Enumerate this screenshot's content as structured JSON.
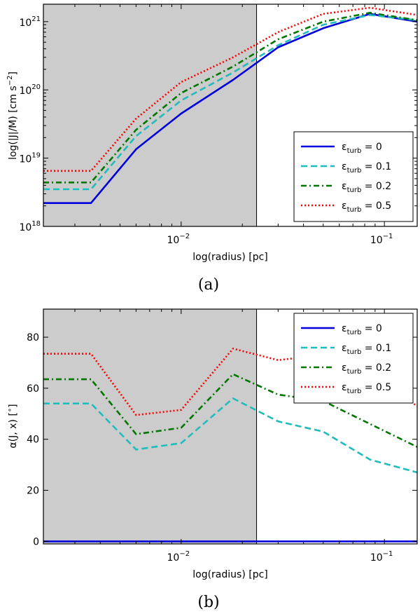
{
  "chart_data": [
    {
      "type": "line",
      "caption": "(a)",
      "xlabel": "log(radius) [pc]",
      "ylabel": "log(|J|/M) [cm s",
      "ylabel_sup": "−2",
      "ylabel_end": "]",
      "xscale": "log",
      "yscale": "log",
      "xlim": [
        0.0021,
        0.145
      ],
      "ylim": [
        1e+18,
        1.8e+21
      ],
      "shaded_xmax": 0.0235,
      "x_ticks": [
        {
          "value": 0.01,
          "base": "10",
          "exp": "−2"
        },
        {
          "value": 0.1,
          "base": "10",
          "exp": "−1"
        }
      ],
      "y_ticks": [
        {
          "value": 1e+18,
          "base": "10",
          "exp": "18"
        },
        {
          "value": 1e+19,
          "base": "10",
          "exp": "19"
        },
        {
          "value": 1e+20,
          "base": "10",
          "exp": "20"
        },
        {
          "value": 1e+21,
          "base": "10",
          "exp": "21"
        }
      ],
      "legend_position": "bottom-right",
      "series": [
        {
          "name": "= 0",
          "color": "#0000dd",
          "dash": "solid",
          "x": [
            0.0021,
            0.0036,
            0.006,
            0.01,
            0.018,
            0.03,
            0.05,
            0.085,
            0.145
          ],
          "y": [
            2.2e+18,
            2.2e+18,
            1.35e+19,
            4.5e+19,
            1.4e+20,
            4.2e+20,
            8e+20,
            1.3e+21,
            1e+21
          ]
        },
        {
          "name": "= 0.1",
          "color": "#22bbbb",
          "dash": "dashed",
          "x": [
            0.0021,
            0.0036,
            0.006,
            0.01,
            0.018,
            0.03,
            0.05,
            0.085,
            0.145
          ],
          "y": [
            3.5e+18,
            3.5e+18,
            2.1e+19,
            7e+19,
            1.8e+20,
            4.5e+20,
            9e+20,
            1.25e+21,
            1.05e+21
          ]
        },
        {
          "name": "= 0.2",
          "color": "#007700",
          "dash": "dashdot",
          "x": [
            0.0021,
            0.0036,
            0.006,
            0.01,
            0.018,
            0.03,
            0.05,
            0.085,
            0.145
          ],
          "y": [
            4.4e+18,
            4.4e+18,
            2.6e+19,
            9e+19,
            2.2e+20,
            5.5e+20,
            1e+21,
            1.35e+21,
            1.05e+21
          ]
        },
        {
          "name": "= 0.5",
          "color": "#ff0000",
          "dash": "dotted",
          "x": [
            0.0021,
            0.0036,
            0.006,
            0.01,
            0.018,
            0.03,
            0.05,
            0.085,
            0.145
          ],
          "y": [
            6.5e+18,
            6.5e+18,
            3.8e+19,
            1.3e+20,
            3e+20,
            7e+20,
            1.3e+21,
            1.6e+21,
            1.25e+21
          ]
        }
      ]
    },
    {
      "type": "line",
      "caption": "(b)",
      "xlabel": "log(radius) [pc]",
      "ylabel": "α(J, x) [",
      "ylabel_sup": "∘",
      "ylabel_end": "]",
      "xscale": "log",
      "yscale": "linear",
      "xlim": [
        0.0021,
        0.145
      ],
      "ylim": [
        -1,
        91
      ],
      "shaded_xmax": 0.0235,
      "x_ticks": [
        {
          "value": 0.01,
          "base": "10",
          "exp": "−2"
        },
        {
          "value": 0.1,
          "base": "10",
          "exp": "−1"
        }
      ],
      "y_ticks": [
        {
          "value": 0,
          "label": "0"
        },
        {
          "value": 20,
          "label": "20"
        },
        {
          "value": 40,
          "label": "40"
        },
        {
          "value": 60,
          "label": "60"
        },
        {
          "value": 80,
          "label": "80"
        }
      ],
      "legend_position": "top-right",
      "series": [
        {
          "name": "= 0",
          "color": "#0000dd",
          "dash": "solid",
          "x": [
            0.0021,
            0.0036,
            0.006,
            0.01,
            0.018,
            0.03,
            0.05,
            0.085,
            0.145
          ],
          "y": [
            0,
            0,
            0,
            0,
            0,
            0,
            0,
            0,
            0
          ]
        },
        {
          "name": "= 0.1",
          "color": "#22bbbb",
          "dash": "dashed",
          "x": [
            0.0021,
            0.0036,
            0.006,
            0.01,
            0.018,
            0.03,
            0.05,
            0.085,
            0.145
          ],
          "y": [
            54,
            54,
            36,
            38.5,
            56,
            47,
            43,
            32,
            27
          ]
        },
        {
          "name": "= 0.2",
          "color": "#007700",
          "dash": "dashdot",
          "x": [
            0.0021,
            0.0036,
            0.006,
            0.01,
            0.018,
            0.03,
            0.05,
            0.085,
            0.145
          ],
          "y": [
            63.5,
            63.5,
            42,
            44.5,
            65.5,
            57.5,
            55,
            46,
            37
          ]
        },
        {
          "name": "= 0.5",
          "color": "#ff0000",
          "dash": "dotted",
          "x": [
            0.0021,
            0.0036,
            0.006,
            0.01,
            0.018,
            0.03,
            0.05,
            0.085,
            0.145
          ],
          "y": [
            73.5,
            73.5,
            49.5,
            51.5,
            75.5,
            71,
            73,
            65,
            53
          ]
        }
      ]
    }
  ],
  "legend_symbol": "ε",
  "legend_subscript": "turb"
}
